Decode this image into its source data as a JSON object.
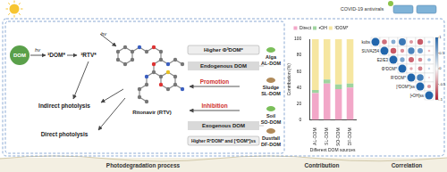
{
  "top_right": {
    "label": "COVID-19 antivirals"
  },
  "photolysis": {
    "dom": "DOM",
    "light": "hv",
    "dom_triplet": "³DOM*",
    "rtv_triplet": "³RTV*",
    "indirect": "Indirect photolysis",
    "direct": "Direct photolysis",
    "compound": "Ritonavir (RTV)"
  },
  "endogenous": {
    "label": "Endogenous DOM",
    "effect": "Promotion",
    "property": "Higher Φ³DOM*",
    "sources": [
      {
        "name": "Alga",
        "code": "AL-DOM"
      },
      {
        "name": "Sludge",
        "code": "SL-DOM"
      }
    ]
  },
  "exogenous": {
    "label": "Exogenous DOM",
    "effect": "Inhibition",
    "property": "Higher R³DOM* and [³DOM*]ss",
    "sources": [
      {
        "name": "Soil",
        "code": "SO-DOM"
      },
      {
        "name": "Dustfall",
        "code": "DF-DOM"
      }
    ]
  },
  "footer": [
    "Photodegradation process",
    "Contribution",
    "Correlation"
  ],
  "chart_data": [
    {
      "type": "bar",
      "stacked": true,
      "xlabel": "Different DOM sources",
      "ylabel": "Contribution (%)",
      "categories": [
        "AL-DOM",
        "SL-DOM",
        "SO-DOM",
        "DF-DOM"
      ],
      "series": [
        {
          "name": "Direct",
          "color": "#f2a7c8",
          "values": [
            33,
            45,
            38,
            40
          ]
        },
        {
          "name": "•OH",
          "color": "#9fd49f",
          "values": [
            4,
            5,
            6,
            5
          ]
        },
        {
          "name": "³DOM*",
          "color": "#f6e6a0",
          "values": [
            63,
            50,
            56,
            55
          ]
        }
      ],
      "ylim": [
        0,
        100
      ],
      "yticks": [
        0,
        20,
        40,
        60,
        80,
        100
      ],
      "grid": false,
      "legend": "top"
    },
    {
      "type": "heatmap",
      "categories": [
        "kobs",
        "SUVA254",
        "E2/E3",
        "Φ³DOM*",
        "R³DOM*",
        "[³DOM*]ss",
        "[•OH]ss"
      ],
      "cells": [
        [
          1,
          -0.62,
          0.55,
          0.88,
          -0.45,
          -0.71,
          0.36
        ],
        [
          null,
          1,
          -0.72,
          -0.48,
          0.81,
          0.66,
          -0.3
        ],
        [
          null,
          null,
          1,
          0.59,
          -0.67,
          -0.52,
          0.41
        ],
        [
          null,
          null,
          null,
          1,
          -0.38,
          -0.55,
          0.27
        ],
        [
          null,
          null,
          null,
          null,
          1,
          0.83,
          -0.22
        ],
        [
          null,
          null,
          null,
          null,
          null,
          1,
          -0.46
        ],
        [
          null,
          null,
          null,
          null,
          null,
          null,
          1
        ]
      ],
      "zlim": [
        -1,
        1
      ],
      "zticks": [
        -1,
        -0.5,
        0,
        0.5,
        1
      ]
    }
  ]
}
